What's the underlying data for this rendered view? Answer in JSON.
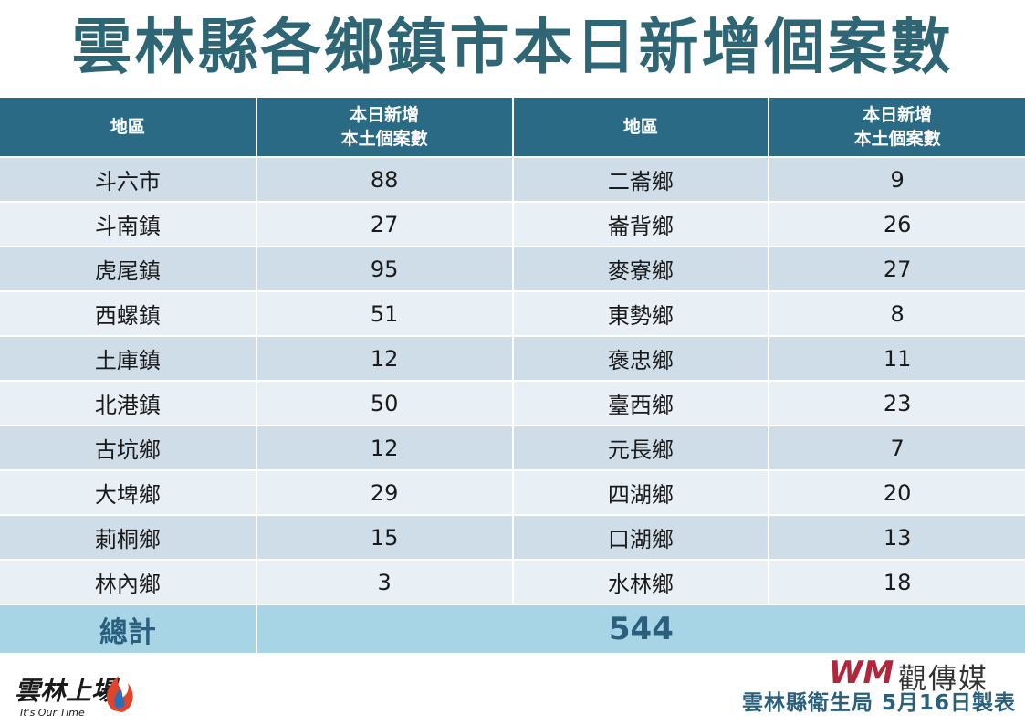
{
  "title": "雲林縣各鄉鎮市本日新增個案數",
  "table": {
    "headers": [
      {
        "line1": "地區",
        "line2": ""
      },
      {
        "line1": "本日新增",
        "line2": "本土個案數"
      },
      {
        "line1": "地區",
        "line2": ""
      },
      {
        "line1": "本日新增",
        "line2": "本土個案數"
      }
    ],
    "rows": [
      [
        "斗六市",
        "88",
        "二崙鄉",
        "9"
      ],
      [
        "斗南鎮",
        "27",
        "崙背鄉",
        "26"
      ],
      [
        "虎尾鎮",
        "95",
        "麥寮鄉",
        "27"
      ],
      [
        "西螺鎮",
        "51",
        "東勢鄉",
        "8"
      ],
      [
        "土庫鎮",
        "12",
        "褒忠鄉",
        "11"
      ],
      [
        "北港鎮",
        "50",
        "臺西鄉",
        "23"
      ],
      [
        "古坑鄉",
        "12",
        "元長鄉",
        "7"
      ],
      [
        "大埤鄉",
        "29",
        "四湖鄉",
        "20"
      ],
      [
        "莿桐鄉",
        "15",
        "口湖鄉",
        "13"
      ],
      [
        "林內鄉",
        "3",
        "水林鄉",
        "18"
      ]
    ],
    "total_label": "總計",
    "total_value": "544"
  },
  "logo_left": {
    "script": "雲林上場",
    "tagline": "It's Our Time"
  },
  "logo_right": {
    "brand": "觀傳媒",
    "mark": "WM"
  },
  "footer": "雲林縣衛生局  5月16日製表",
  "colors": {
    "title": "#2f6676",
    "header_bg": "#2a6a85",
    "row_odd": "#cfdde8",
    "row_even": "#e8eff5",
    "total_bg": "#a8d5e6",
    "total_text": "#2a5f7e",
    "logo_red": "#b3253a"
  }
}
